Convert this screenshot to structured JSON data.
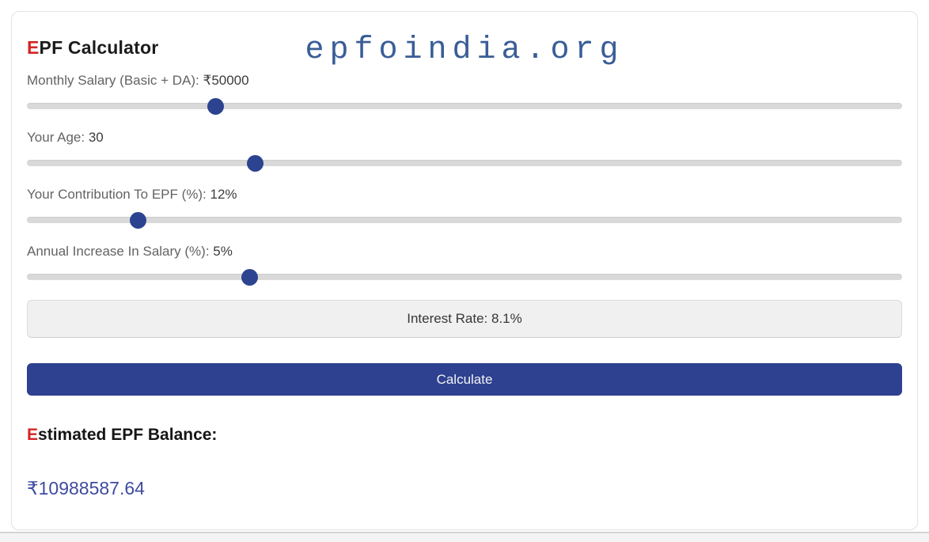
{
  "watermark": {
    "text": "epfoindia.org",
    "color": "#3a5d97"
  },
  "calculator": {
    "title_first_letter": "E",
    "title_rest": "PF Calculator",
    "sliders": [
      {
        "name": "monthly-salary",
        "label": "Monthly Salary (Basic + DA): ",
        "value": "₹50000",
        "percent": 21.5
      },
      {
        "name": "age",
        "label": "Your Age: ",
        "value": "30",
        "percent": 26.0
      },
      {
        "name": "epf-contribution",
        "label": "Your Contribution To EPF (%): ",
        "value": "12%",
        "percent": 12.7
      },
      {
        "name": "annual-increase",
        "label": "Annual Increase In Salary (%): ",
        "value": "5%",
        "percent": 25.4
      }
    ],
    "interest_rate_text": "Interest Rate: 8.1%",
    "calculate_label": "Calculate",
    "result_heading_first_letter": "E",
    "result_heading_rest": "stimated EPF Balance:",
    "result_value": "₹10988587.64"
  },
  "colors": {
    "accent_red": "#d32525",
    "thumb_blue": "#2c4390",
    "button_blue": "#2e4190",
    "result_indigo": "#3e4b9e",
    "watermark_blue": "#3a5d97"
  }
}
